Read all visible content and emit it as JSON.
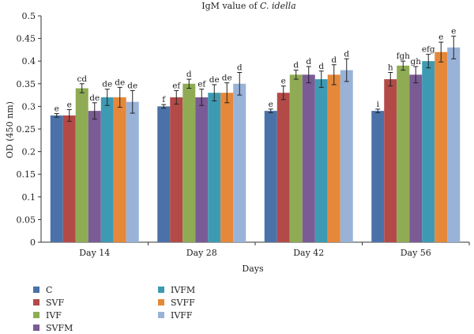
{
  "chart_data": {
    "type": "bar",
    "title_prefix": "IgM value of ",
    "title_species": "C. idella",
    "xlabel": "Days",
    "ylabel": "OD (450 nm)",
    "ylim": [
      0,
      0.5
    ],
    "yticks": [
      "0",
      "0.05",
      "0.1",
      "0.15",
      "0.2",
      "0.25",
      "0.3",
      "0.35",
      "0.4",
      "0.45",
      "0.5"
    ],
    "categories": [
      "Day 14",
      "Day 28",
      "Day 42",
      "Day 56"
    ],
    "series": [
      {
        "name": "C",
        "color": "#4a72a8",
        "values": [
          0.28,
          0.3,
          0.29,
          0.29
        ],
        "errors": [
          0.004,
          0.004,
          0.004,
          0.004
        ],
        "labels": [
          "e",
          "f",
          "e",
          "i"
        ]
      },
      {
        "name": "SVF",
        "color": "#b34a48",
        "values": [
          0.28,
          0.32,
          0.33,
          0.36
        ],
        "errors": [
          0.013,
          0.015,
          0.015,
          0.015
        ],
        "labels": [
          "e",
          "ef",
          "e",
          "h"
        ]
      },
      {
        "name": "IVF",
        "color": "#8fac55",
        "values": [
          0.34,
          0.35,
          0.37,
          0.39
        ],
        "errors": [
          0.01,
          0.01,
          0.01,
          0.01
        ],
        "labels": [
          "cd",
          "d",
          "d",
          "fgh"
        ]
      },
      {
        "name": "SVFM",
        "color": "#7a5b95",
        "values": [
          0.29,
          0.32,
          0.37,
          0.37
        ],
        "errors": [
          0.018,
          0.018,
          0.018,
          0.018
        ],
        "labels": [
          "de",
          "ef",
          "d",
          "gh"
        ]
      },
      {
        "name": "IVFM",
        "color": "#3e9ab3",
        "values": [
          0.32,
          0.33,
          0.36,
          0.4
        ],
        "errors": [
          0.018,
          0.018,
          0.018,
          0.015
        ],
        "labels": [
          "de",
          "de",
          "d",
          "efg"
        ]
      },
      {
        "name": "SVFF",
        "color": "#e5883a",
        "values": [
          0.32,
          0.33,
          0.37,
          0.42
        ],
        "errors": [
          0.022,
          0.022,
          0.022,
          0.022
        ],
        "labels": [
          "de",
          "de",
          "d",
          "e"
        ]
      },
      {
        "name": "IVFF",
        "color": "#99b2d8",
        "values": [
          0.31,
          0.35,
          0.38,
          0.43
        ],
        "errors": [
          0.025,
          0.025,
          0.025,
          0.025
        ],
        "labels": [
          "de",
          "d",
          "d",
          "e"
        ]
      }
    ],
    "legend_position": "bottom",
    "grid": false
  }
}
